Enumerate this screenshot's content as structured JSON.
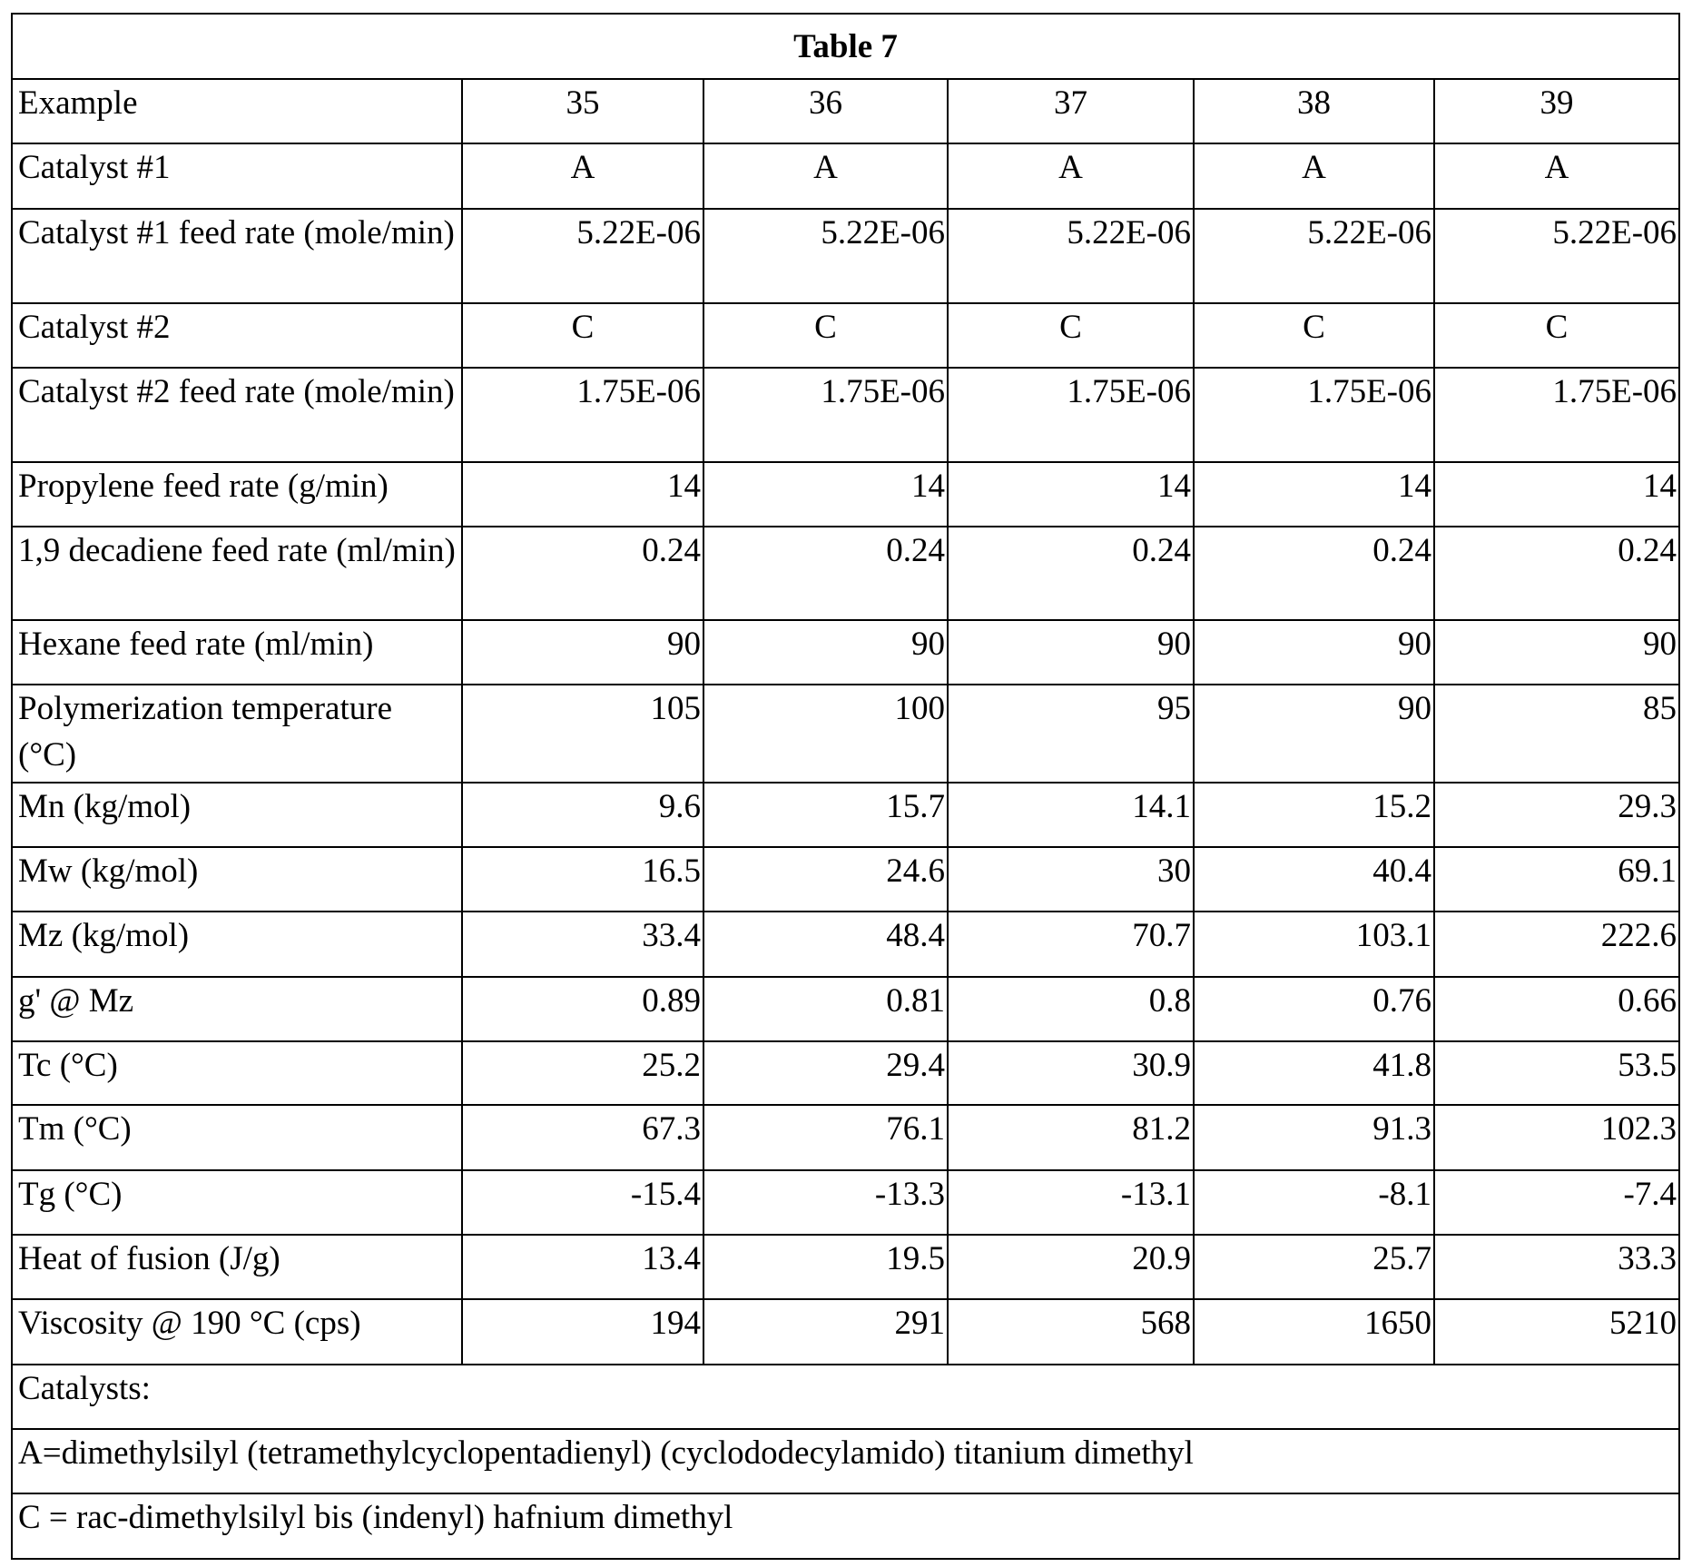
{
  "table": {
    "title": "Table 7",
    "header": [
      "Example",
      "35",
      "36",
      "37",
      "38",
      "39"
    ],
    "rows": [
      [
        "Catalyst #1",
        "A",
        "A",
        "A",
        "A",
        "A"
      ],
      [
        "Catalyst  #1 feed rate (mole/min)",
        "5.22E-06",
        "5.22E-06",
        "5.22E-06",
        "5.22E-06",
        "5.22E-06"
      ],
      [
        "Catalyst #2",
        "C",
        "C",
        "C",
        "C",
        "C"
      ],
      [
        "Catalyst #2 feed rate (mole/min)",
        "1.75E-06",
        "1.75E-06",
        "1.75E-06",
        "1.75E-06",
        "1.75E-06"
      ],
      [
        "Propylene feed rate (g/min)",
        "14",
        "14",
        "14",
        "14",
        "14"
      ],
      [
        "1,9 decadiene feed rate (ml/min)",
        "0.24",
        "0.24",
        "0.24",
        "0.24",
        "0.24"
      ],
      [
        "Hexane feed rate (ml/min)",
        "90",
        "90",
        "90",
        "90",
        "90"
      ],
      [
        "Polymerization temperature (°C)",
        "105",
        "100",
        "95",
        "90",
        "85"
      ],
      [
        "Mn (kg/mol)",
        "9.6",
        "15.7",
        "14.1",
        "15.2",
        "29.3"
      ],
      [
        "Mw (kg/mol)",
        "16.5",
        "24.6",
        "30",
        "40.4",
        "69.1"
      ],
      [
        "Mz (kg/mol)",
        "33.4",
        "48.4",
        "70.7",
        "103.1",
        "222.6"
      ],
      [
        "g' @ Mz",
        "0.89",
        "0.81",
        "0.8",
        "0.76",
        "0.66"
      ],
      [
        "Tc (°C)",
        "25.2",
        "29.4",
        "30.9",
        "41.8",
        "53.5"
      ],
      [
        "Tm (°C)",
        "67.3",
        "76.1",
        "81.2",
        "91.3",
        "102.3"
      ],
      [
        "Tg (°C)",
        "-15.4",
        "-13.3",
        "-13.1",
        "-8.1",
        "-7.4"
      ],
      [
        "Heat of fusion (J/g)",
        "13.4",
        "19.5",
        "20.9",
        "25.7",
        "33.3"
      ],
      [
        "Viscosity @ 190 °C (cps)",
        "194",
        "291",
        "568",
        "1650",
        "5210"
      ]
    ],
    "notes": [
      "Catalysts:",
      "A=dimethylsilyl (tetramethylcyclopentadienyl) (cyclododecylamido) titanium dimethyl",
      "C = rac-dimethylsilyl bis (indenyl) hafnium dimethyl"
    ]
  }
}
